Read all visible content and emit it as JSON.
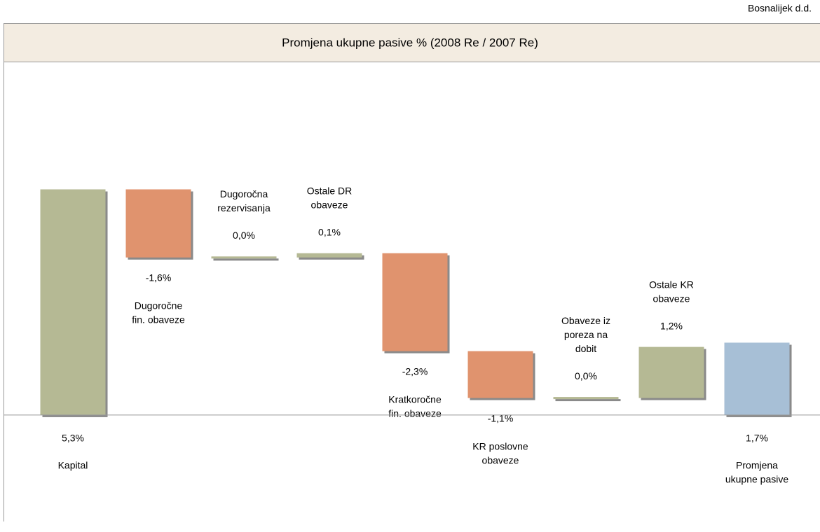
{
  "chart_data": {
    "type": "waterfall",
    "company": "Bosnalijek d.d.",
    "title": "Promjena ukupne pasive % (2008 Re / 2007 Re)",
    "categories": [
      [
        "Kapital"
      ],
      [
        "Dugoročne",
        "fin. obaveze"
      ],
      [
        "Dugoročna",
        "rezervisanja"
      ],
      [
        "Ostale DR",
        "obaveze"
      ],
      [
        "Kratkoročne",
        "fin. obaveze"
      ],
      [
        "KR poslovne",
        "obaveze"
      ],
      [
        "Obaveze iz",
        "poreza na",
        "dobit"
      ],
      [
        "Ostale KR",
        "obaveze"
      ],
      [
        "Promjena",
        "ukupne pasive"
      ]
    ],
    "values": [
      5.3,
      -1.6,
      0.0,
      0.1,
      -2.3,
      -1.1,
      0.0,
      1.2,
      1.7
    ],
    "value_labels": [
      "5,3%",
      "-1,6%",
      "0,0%",
      "0,1%",
      "-2,3%",
      "-1,1%",
      "0,0%",
      "1,2%",
      "1,7%"
    ],
    "colors": [
      "#b5b994",
      "#e0936e",
      "#b5b994",
      "#b5b994",
      "#e0936e",
      "#e0936e",
      "#b5b994",
      "#b5b994",
      "#a7bfd6"
    ],
    "ylim": [
      -2.5,
      8.3
    ]
  }
}
